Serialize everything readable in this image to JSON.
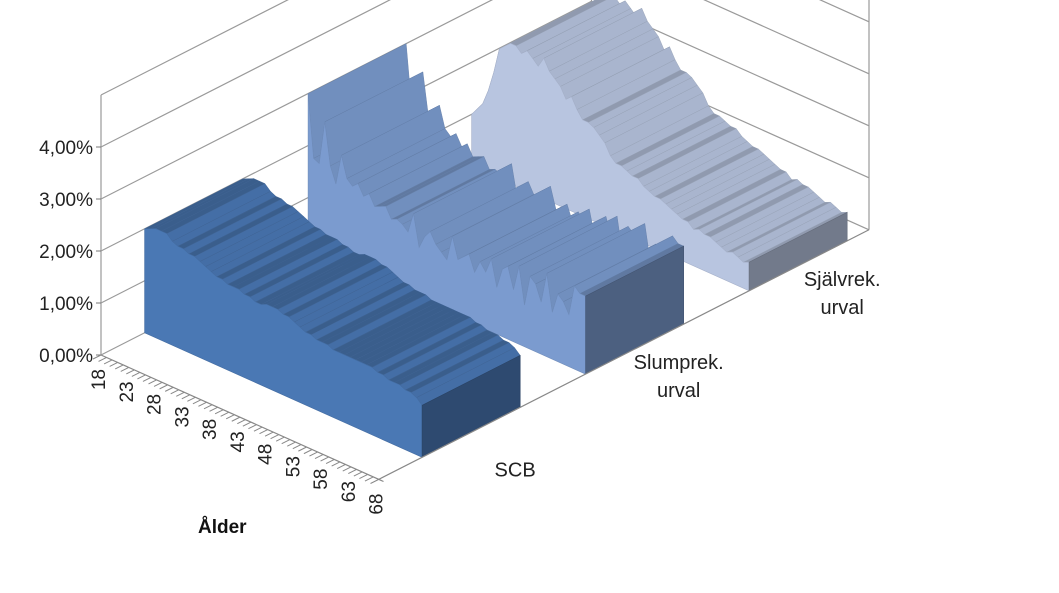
{
  "chart_data": {
    "type": "area",
    "variant": "3d",
    "xlabel": "Ålder",
    "x": [
      18,
      19,
      20,
      21,
      22,
      23,
      24,
      25,
      26,
      27,
      28,
      29,
      30,
      31,
      32,
      33,
      34,
      35,
      36,
      37,
      38,
      39,
      40,
      41,
      42,
      43,
      44,
      45,
      46,
      47,
      48,
      49,
      50,
      51,
      52,
      53,
      54,
      55,
      56,
      57,
      58,
      59,
      60,
      61,
      62,
      63,
      64,
      65,
      66,
      67,
      68
    ],
    "x_tick_labels": [
      "18",
      "23",
      "28",
      "33",
      "38",
      "43",
      "48",
      "53",
      "58",
      "63",
      "68"
    ],
    "y_tick_labels": [
      "0,00%",
      "1,00%",
      "2,00%",
      "3,00%",
      "4,00%"
    ],
    "ylim": [
      0,
      4
    ],
    "grid": true,
    "series": [
      {
        "name": "SCB",
        "color": "#4a78b4",
        "values": [
          2.0,
          2.05,
          2.1,
          2.1,
          2.1,
          2.0,
          1.95,
          1.95,
          1.9,
          1.9,
          1.85,
          1.8,
          1.75,
          1.7,
          1.7,
          1.65,
          1.65,
          1.65,
          1.6,
          1.6,
          1.55,
          1.55,
          1.6,
          1.6,
          1.6,
          1.55,
          1.55,
          1.5,
          1.45,
          1.4,
          1.4,
          1.35,
          1.35,
          1.35,
          1.3,
          1.3,
          1.3,
          1.3,
          1.3,
          1.3,
          1.3,
          1.3,
          1.25,
          1.25,
          1.2,
          1.2,
          1.2,
          1.15,
          1.15,
          1.1,
          1.0
        ]
      },
      {
        "name": "Slumprek. urval",
        "color": "#7b9bcf",
        "values": [
          3.0,
          1.8,
          1.75,
          2.6,
          1.8,
          1.5,
          2.1,
          1.7,
          1.6,
          1.7,
          1.5,
          1.6,
          1.4,
          1.45,
          1.5,
          1.3,
          1.35,
          1.3,
          1.2,
          1.6,
          1.0,
          1.25,
          1.4,
          1.2,
          1.1,
          1.0,
          1.5,
          1.1,
          1.2,
          1.3,
          1.0,
          1.25,
          1.1,
          1.4,
          0.9,
          1.3,
          1.4,
          1.0,
          1.5,
          0.8,
          1.4,
          1.3,
          1.0,
          1.6,
          0.9,
          1.3,
          1.2,
          1.0,
          1.6,
          1.5,
          1.5
        ]
      },
      {
        "name": "Självrek. urval",
        "color": "#b8c5e0",
        "values": [
          1.0,
          1.15,
          1.3,
          1.6,
          2.0,
          2.5,
          2.6,
          2.7,
          2.7,
          2.6,
          2.7,
          2.6,
          2.5,
          2.7,
          2.5,
          2.4,
          2.3,
          2.1,
          2.2,
          2.0,
          1.85,
          1.85,
          1.8,
          1.7,
          1.6,
          1.4,
          1.3,
          1.3,
          1.25,
          1.2,
          1.2,
          1.1,
          1.05,
          1.0,
          1.0,
          0.95,
          0.9,
          0.85,
          0.8,
          0.8,
          0.7,
          0.75,
          0.7,
          0.7,
          0.65,
          0.6,
          0.55,
          0.6,
          0.55,
          0.5,
          0.55
        ]
      }
    ]
  }
}
